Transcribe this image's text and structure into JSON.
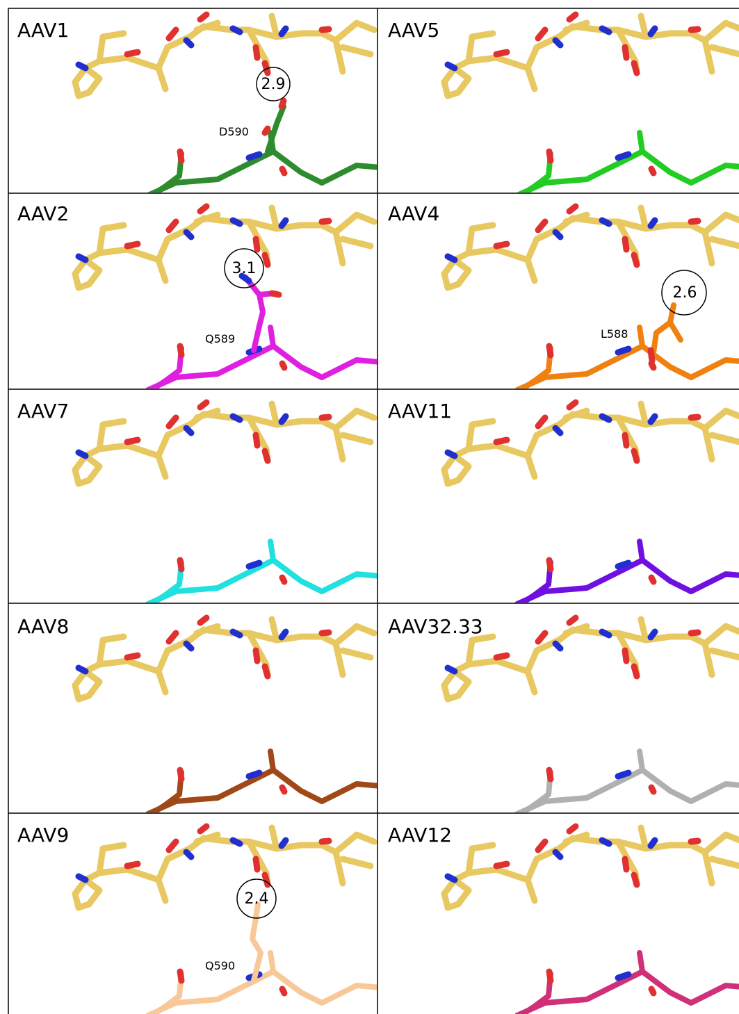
{
  "panels": [
    {
      "label": "AAV1",
      "residue": "D590",
      "distance": "2.9"
    },
    {
      "label": "AAV5"
    },
    {
      "label": "AAV2",
      "residue": "Q589",
      "distance": "3.1"
    },
    {
      "label": "AAV4",
      "residue": "L588",
      "distance": "2.6"
    },
    {
      "label": "AAV7"
    },
    {
      "label": "AAV11"
    },
    {
      "label": "AAV8"
    },
    {
      "label": "AAV32.33"
    },
    {
      "label": "AAV9",
      "residue": "Q590",
      "distance": "2.4"
    },
    {
      "label": "AAV12"
    }
  ]
}
